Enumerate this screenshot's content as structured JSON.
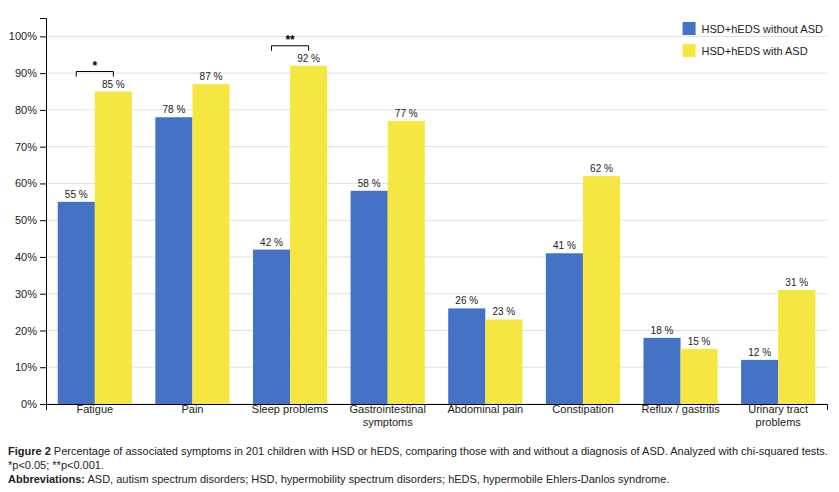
{
  "chart_data": {
    "type": "bar",
    "categories": [
      "Fatigue",
      "Pain",
      "Sleep problems",
      "Gastrointestinal\nsymptoms",
      "Abdominal pain",
      "Constipation",
      "Reflux / gastritis",
      "Urinary tract\nproblems"
    ],
    "series": [
      {
        "name": "HSD+hEDS without ASD",
        "color": "#4472C4",
        "values": [
          55,
          78,
          42,
          58,
          26,
          41,
          18,
          12
        ],
        "value_labels": [
          "55 %",
          "78 %",
          "42 %",
          "58 %",
          "26 %",
          "41 %",
          "18 %",
          "12 %"
        ]
      },
      {
        "name": "HSD+hEDS with ASD",
        "color": "#F5E642",
        "values": [
          85,
          87,
          92,
          77,
          23,
          62,
          15,
          31
        ],
        "value_labels": [
          "85 %",
          "87 %",
          "92 %",
          "77 %",
          "23 %",
          "62 %",
          "15 %",
          "31 %"
        ]
      }
    ],
    "ylim": [
      0,
      105
    ],
    "yticks": [
      {
        "value": 0,
        "label": "0%"
      },
      {
        "value": 10,
        "label": "10%"
      },
      {
        "value": 20,
        "label": "20%"
      },
      {
        "value": 30,
        "label": "30%"
      },
      {
        "value": 40,
        "label": "40%"
      },
      {
        "value": 50,
        "label": "50%"
      },
      {
        "value": 60,
        "label": "60%"
      },
      {
        "value": 70,
        "label": "70%"
      },
      {
        "value": 80,
        "label": "80%"
      },
      {
        "value": 90,
        "label": "90%"
      },
      {
        "value": 100,
        "label": "100%"
      }
    ],
    "grid": true,
    "legend": "upper right",
    "data_labels": true,
    "annotations": [
      {
        "text": "*",
        "category": "Fatigue"
      },
      {
        "text": "**",
        "category": "Sleep problems"
      }
    ],
    "caption": [
      {
        "bold": "Figure 2 ",
        "text": "Percentage of associated symptoms in 201 children with HSD or hEDS, comparing those with and without a diagnosis of ASD. Analyzed with chi-squared tests."
      },
      {
        "text": "*p<0.05; **p<0.001."
      },
      {
        "bold": "Abbreviations: ",
        "text": "ASD, autism spectrum disorders; HSD, hypermobility spectrum disorders; hEDS, hypermobile Ehlers-Danlos syndrome."
      }
    ]
  }
}
